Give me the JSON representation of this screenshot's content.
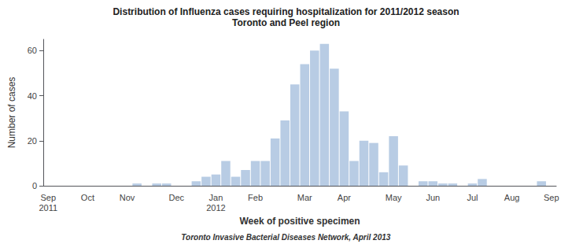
{
  "chart_data": {
    "type": "bar",
    "title": "Distribution of Influenza cases requiring hospitalization for 2011/2012 season",
    "subtitle": "Toronto and Peel region",
    "xlabel": "Week of positive specimen",
    "ylabel": "Number of cases",
    "annotations": [
      "Toronto Invasive Bacterial Diseases Network, April 2013"
    ],
    "categories": [
      "Sep\n2011",
      null,
      null,
      null,
      "Oct",
      null,
      null,
      null,
      "Nov",
      null,
      null,
      null,
      null,
      "Dec",
      null,
      null,
      null,
      "Jan\n2012",
      null,
      null,
      null,
      "Feb",
      null,
      null,
      null,
      null,
      "Mar",
      null,
      null,
      null,
      "Apr",
      null,
      null,
      null,
      null,
      "May",
      null,
      null,
      null,
      "Jun",
      null,
      null,
      null,
      "Jul",
      null,
      null,
      null,
      "Aug",
      null,
      null,
      null,
      "Sep"
    ],
    "values": [
      0,
      0,
      0,
      0,
      0,
      0,
      0,
      0,
      0,
      1,
      0,
      1,
      1,
      0,
      0,
      2,
      4,
      5,
      11,
      4,
      7,
      11,
      11,
      21,
      29,
      45,
      54,
      60,
      63,
      52,
      33,
      11,
      20,
      19,
      6,
      22,
      9,
      0,
      2,
      2,
      1,
      1,
      0,
      1,
      3,
      0,
      0,
      0,
      0,
      0,
      2,
      0
    ],
    "color": "#b8cce4",
    "ylim": [
      0,
      65
    ],
    "yticks": [
      0,
      20,
      40,
      60
    ],
    "grid": false
  }
}
